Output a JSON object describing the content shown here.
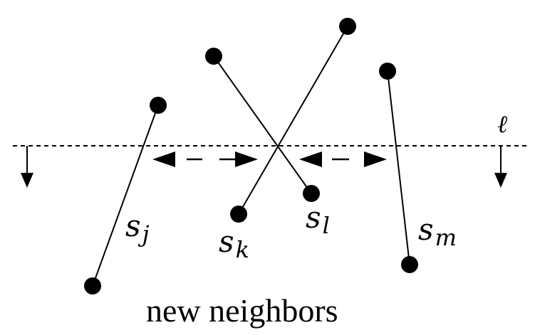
{
  "sweep_line": {
    "label": "ℓ"
  },
  "segments": [
    {
      "id": "j",
      "name": "s",
      "sub": "j"
    },
    {
      "id": "k",
      "name": "s",
      "sub": "k"
    },
    {
      "id": "l",
      "name": "s",
      "sub": "l"
    },
    {
      "id": "m",
      "name": "s",
      "sub": "m"
    }
  ],
  "caption": "new neighbors"
}
